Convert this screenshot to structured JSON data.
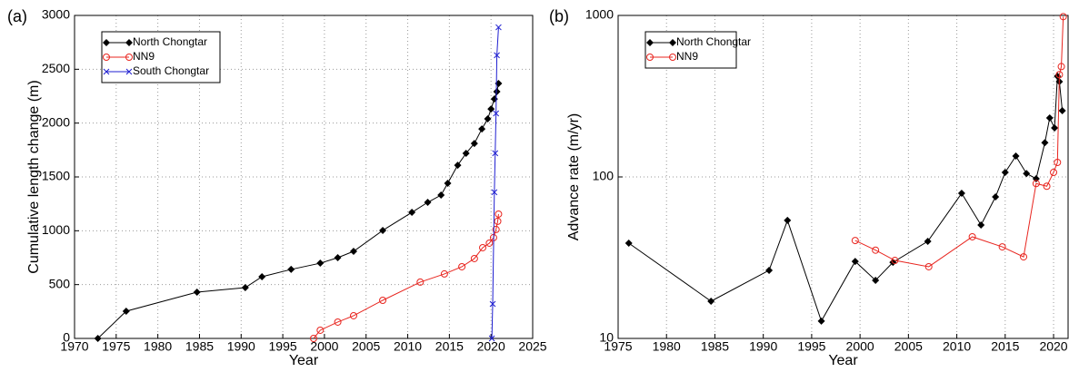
{
  "chart_data": [
    {
      "type": "line",
      "label": "(a)",
      "xlabel": "Year",
      "ylabel": "Cumulative length change (m)",
      "xlim": [
        1970,
        2025
      ],
      "xticks": [
        1970,
        1975,
        1980,
        1985,
        1990,
        1995,
        2000,
        2005,
        2010,
        2015,
        2020,
        2025
      ],
      "ylim": [
        0,
        3000
      ],
      "yticks": [
        0,
        500,
        1000,
        1500,
        2000,
        2500,
        3000
      ],
      "grid": true,
      "legend": "upper left",
      "series": [
        {
          "name": "North Chongtar",
          "color": "#000000",
          "marker": "diamond",
          "x": [
            1972.8,
            1976.2,
            1984.7,
            1990.5,
            1992.5,
            1996,
            1999.5,
            2001.6,
            2003.5,
            2007,
            2010.5,
            2012.4,
            2014,
            2014.8,
            2016,
            2017,
            2018,
            2018.9,
            2019.6,
            2020,
            2020.4,
            2020.7,
            2020.9
          ],
          "values": [
            0,
            253,
            430,
            472,
            573,
            641,
            699,
            750,
            809,
            1003,
            1171,
            1264,
            1331,
            1441,
            1609,
            1719,
            1811,
            1946,
            2039,
            2131,
            2224,
            2292,
            2368
          ]
        },
        {
          "name": "NN9",
          "color": "#e8251f",
          "marker": "circle",
          "x": [
            1998.7,
            1999.5,
            2001.6,
            2003.5,
            2007,
            2011.5,
            2014.4,
            2016.5,
            2018,
            2019,
            2019.8,
            2020.3,
            2020.6,
            2020.8,
            2020.9
          ],
          "values": [
            0,
            76,
            152,
            211,
            354,
            523,
            599,
            666,
            742,
            843,
            885,
            936,
            1012,
            1088,
            1155
          ]
        },
        {
          "name": "South Chongtar",
          "color": "#1f1fd0",
          "marker": "x",
          "x": [
            2020.1,
            2020.2,
            2020.4,
            2020.5,
            2020.6,
            2020.7,
            2020.9
          ],
          "values": [
            0,
            320,
            1358,
            1720,
            2090,
            2630,
            2890
          ]
        }
      ]
    },
    {
      "type": "line",
      "label": "(b)",
      "xlabel": "Year",
      "ylabel": "Advance rate (m/yr)",
      "xlim": [
        1975,
        2021.5
      ],
      "xticks": [
        1975,
        1980,
        1985,
        1990,
        1995,
        2000,
        2005,
        2010,
        2015,
        2020
      ],
      "ylim": [
        10,
        1000
      ],
      "yticks": [
        10,
        100,
        1000
      ],
      "yscale": "log",
      "grid": true,
      "legend": "upper left",
      "series": [
        {
          "name": "North Chongtar",
          "color": "#000000",
          "marker": "diamond",
          "x": [
            1976.1,
            1984.6,
            1990.6,
            1992.5,
            1996,
            1999.5,
            2001.6,
            2003.4,
            2007,
            2010.5,
            2012.5,
            2014,
            2015,
            2016.1,
            2017.2,
            2018.2,
            2019.1,
            2019.6,
            2020.1,
            2020.4,
            2020.6,
            2020.9
          ],
          "values": [
            38.9,
            17,
            26.4,
            53.8,
            12.8,
            30,
            22.9,
            29.6,
            39.9,
            79.2,
            50.4,
            75.2,
            106.7,
            134.6,
            105,
            97.5,
            163,
            232,
            201,
            420,
            389,
            257
          ]
        },
        {
          "name": "NN9",
          "color": "#e8251f",
          "marker": "circle",
          "x": [
            1999.5,
            2001.6,
            2003.6,
            2007.1,
            2011.6,
            2014.7,
            2016.9,
            2018.2,
            2019.3,
            2020,
            2020.4,
            2020.6,
            2020.8,
            2021
          ],
          "values": [
            40.4,
            35.2,
            30.4,
            27.8,
            42.6,
            36.9,
            32,
            91,
            87.6,
            106.7,
            123,
            430,
            482,
            983
          ]
        }
      ]
    }
  ]
}
